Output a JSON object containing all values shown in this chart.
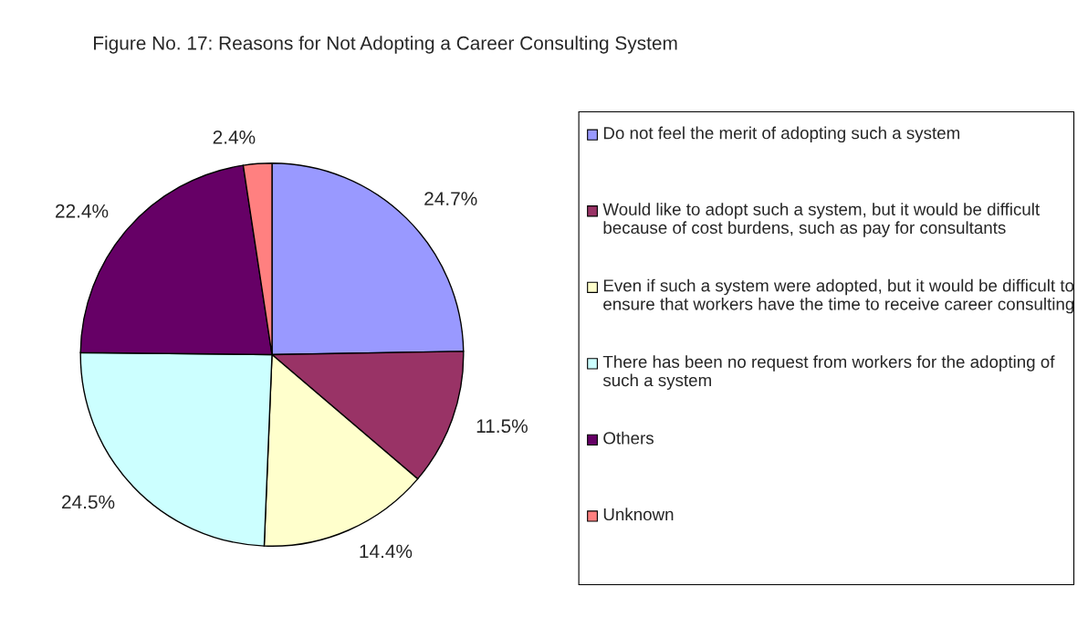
{
  "chart_data": {
    "type": "pie",
    "title": "Figure No. 17: Reasons for Not Adopting a Career Consulting System",
    "categories": [
      "Do not feel the merit of adopting such a system",
      "Would like to adopt such a system, but it would be difficult because of cost burdens, such as pay for consultants",
      "Even if such a system were adopted, but it would be difficult to ensure that workers have the time to receive career consulting",
      "There has been no request from workers for the adopting of such a system",
      "Others",
      "Unknown"
    ],
    "values": [
      24.7,
      11.5,
      14.4,
      24.5,
      22.4,
      2.4
    ],
    "value_labels": [
      "24.7%",
      "11.5%",
      "14.4%",
      "24.5%",
      "22.4%",
      "2.4%"
    ],
    "colors": [
      "#9999ff",
      "#993366",
      "#ffffcc",
      "#ccffff",
      "#660066",
      "#ff8080"
    ],
    "legend": "right"
  }
}
